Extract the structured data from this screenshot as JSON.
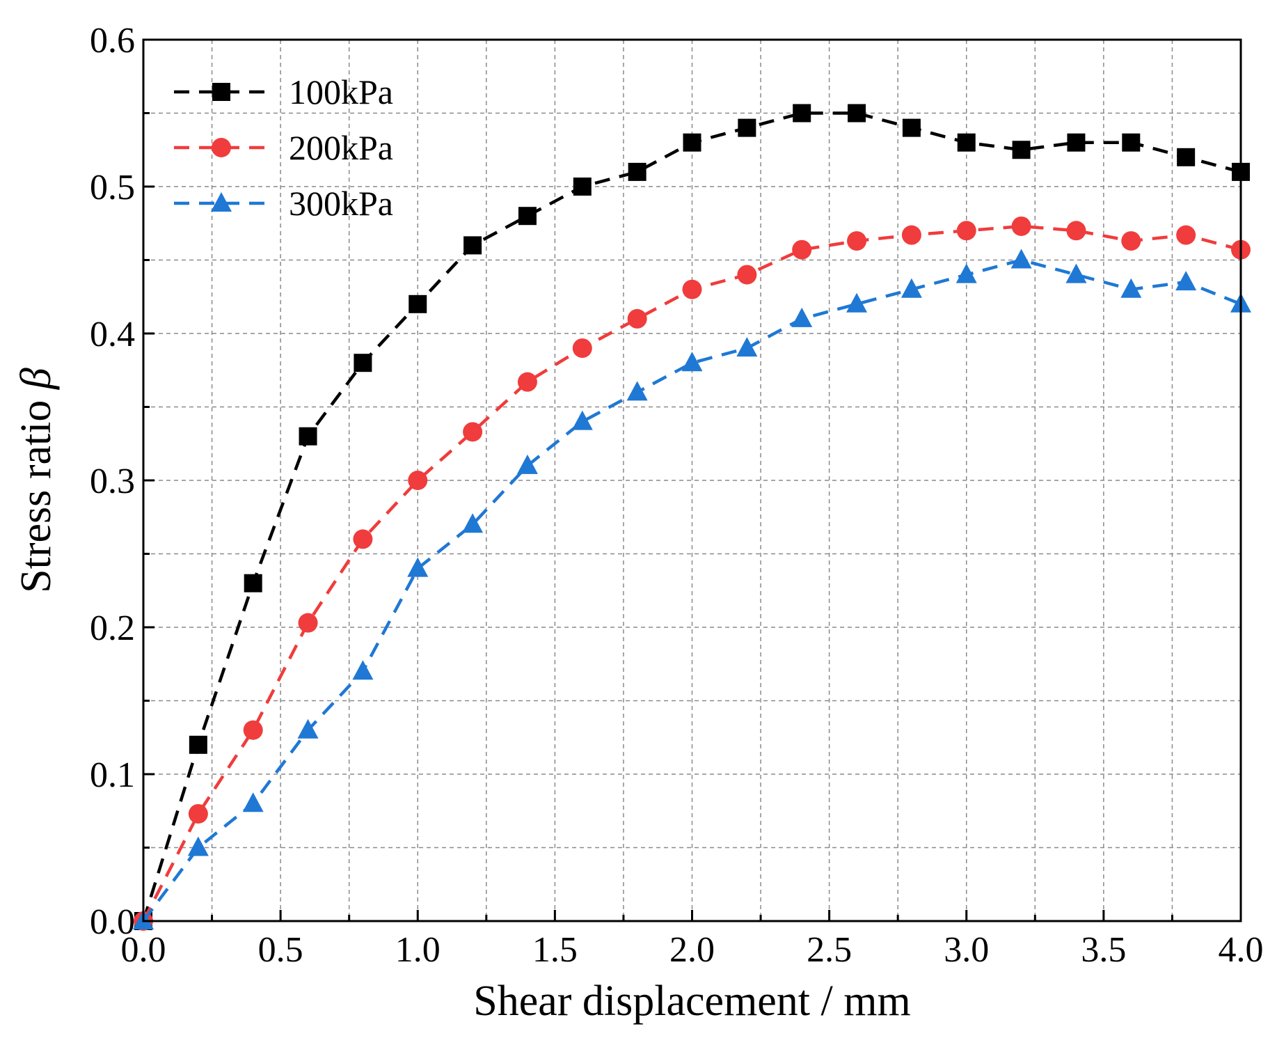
{
  "chart_data": {
    "type": "line",
    "title": "",
    "xlabel": "Shear displacement / mm",
    "ylabel_text": "Stress ratio ",
    "ylabel_symbol": "β",
    "xlim": [
      0,
      4.0
    ],
    "ylim": [
      0,
      0.6
    ],
    "xticks": [
      "0.0",
      "0.5",
      "1.0",
      "1.5",
      "2.0",
      "2.5",
      "3.0",
      "3.5",
      "4.0"
    ],
    "yticks": [
      "0.0",
      "0.1",
      "0.2",
      "0.3",
      "0.4",
      "0.5",
      "0.6"
    ],
    "grid": true,
    "legend_position": "top-left",
    "x": [
      0,
      0.2,
      0.4,
      0.6,
      0.8,
      1.0,
      1.2,
      1.4,
      1.6,
      1.8,
      2.0,
      2.2,
      2.4,
      2.6,
      2.8,
      3.0,
      3.2,
      3.4,
      3.6,
      3.8,
      4.0
    ],
    "series": [
      {
        "name": "100kPa",
        "color": "#000000",
        "marker": "square",
        "values": [
          0,
          0.12,
          0.23,
          0.33,
          0.38,
          0.42,
          0.46,
          0.48,
          0.5,
          0.51,
          0.53,
          0.54,
          0.55,
          0.55,
          0.54,
          0.53,
          0.525,
          0.53,
          0.53,
          0.52,
          0.51
        ]
      },
      {
        "name": "200kPa",
        "color": "#f03c3c",
        "marker": "circle",
        "values": [
          0,
          0.073,
          0.13,
          0.203,
          0.26,
          0.3,
          0.333,
          0.367,
          0.39,
          0.41,
          0.43,
          0.44,
          0.457,
          0.463,
          0.467,
          0.47,
          0.473,
          0.47,
          0.463,
          0.467,
          0.457
        ]
      },
      {
        "name": "300kPa",
        "color": "#1f78d4",
        "marker": "triangle",
        "values": [
          0,
          0.05,
          0.08,
          0.13,
          0.17,
          0.24,
          0.27,
          0.31,
          0.34,
          0.36,
          0.38,
          0.39,
          0.41,
          0.42,
          0.43,
          0.44,
          0.45,
          0.44,
          0.43,
          0.435,
          0.42
        ]
      }
    ]
  }
}
